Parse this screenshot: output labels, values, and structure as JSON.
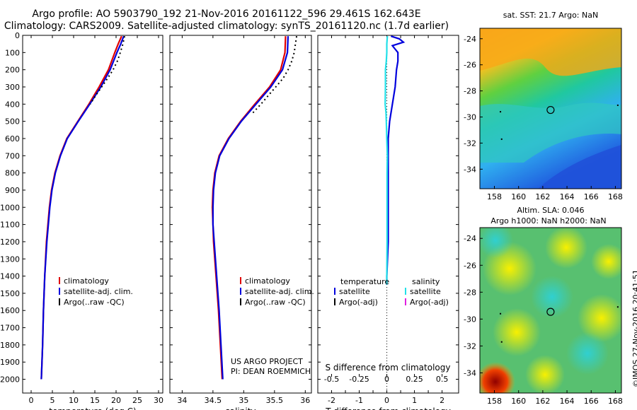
{
  "header": {
    "line1": "Argo profile: AO 5903790_192 21-Nov-2016 20161122_596 29.461S 162.643E",
    "line2": "Climatology: CARS2009. Satellite-adjusted climatology: synTS_20161120.nc (1.7d earlier)"
  },
  "credits": {
    "project": "US ARGO PROJECT",
    "pi": "PI: DEAN ROEMMICH",
    "imos": "©IMOS 27-Nov-2016 20:41:51"
  },
  "colors": {
    "climatology": "#e00000",
    "satellite": "#0000dd",
    "argo": "#000000",
    "sal_satellite": "#22e0e8",
    "sal_argo": "#e020e0"
  },
  "chart_data": [
    {
      "type": "line",
      "panel": "temperature",
      "xlabel": "temperature (deg C)",
      "xlim": [
        -2,
        31
      ],
      "ylim": [
        2080,
        0
      ],
      "x_ticks": [
        0,
        5,
        10,
        15,
        20,
        25,
        30
      ],
      "y_ticks": [
        0,
        100,
        200,
        300,
        400,
        500,
        600,
        700,
        800,
        900,
        1000,
        1100,
        1200,
        1300,
        1400,
        1500,
        1600,
        1700,
        1800,
        1900,
        2000
      ],
      "legend": [
        "climatology",
        "satellite-adj. clim.",
        "Argo(..raw -QC)"
      ],
      "series": [
        {
          "name": "climatology",
          "depth": [
            5,
            50,
            100,
            200,
            300,
            400,
            500,
            600,
            700,
            800,
            900,
            1000,
            1200,
            1400,
            1600,
            1800,
            2000
          ],
          "values": [
            21.3,
            20.5,
            19.7,
            18.2,
            16.0,
            13.6,
            11.0,
            8.4,
            6.8,
            5.6,
            4.8,
            4.3,
            3.6,
            3.2,
            2.9,
            2.7,
            2.4
          ]
        },
        {
          "name": "satellite-adj. clim.",
          "depth": [
            5,
            50,
            100,
            200,
            300,
            400,
            500,
            600,
            700,
            800,
            900,
            1000,
            1200,
            1400,
            1600,
            1800,
            2000
          ],
          "values": [
            21.8,
            21.1,
            20.2,
            18.6,
            16.4,
            13.8,
            11.1,
            8.5,
            6.9,
            5.7,
            4.9,
            4.4,
            3.7,
            3.2,
            2.9,
            2.7,
            2.4
          ]
        },
        {
          "name": "Argo(..raw -QC)",
          "depth": [
            5,
            50,
            100,
            150,
            200,
            250,
            300,
            350,
            400
          ],
          "values": [
            22.0,
            21.6,
            21.0,
            20.3,
            19.3,
            18.0,
            16.6,
            15.2,
            13.9
          ]
        }
      ]
    },
    {
      "type": "line",
      "panel": "salinity",
      "xlabel": "salinity",
      "xlim": [
        33.8,
        36.1
      ],
      "ylim": [
        2080,
        0
      ],
      "x_ticks": [
        34,
        34.5,
        35,
        35.5,
        36
      ],
      "legend": [
        "climatology",
        "satellite-adj. clim.",
        "Argo(..raw -QC)"
      ],
      "series": [
        {
          "name": "climatology",
          "depth": [
            5,
            100,
            200,
            300,
            400,
            500,
            600,
            700,
            800,
            900,
            1000,
            1100,
            1200,
            1400,
            1600,
            1800,
            2000
          ],
          "values": [
            35.68,
            35.67,
            35.6,
            35.42,
            35.18,
            34.95,
            34.75,
            34.6,
            34.53,
            34.5,
            34.49,
            34.5,
            34.51,
            34.55,
            34.59,
            34.62,
            34.65
          ]
        },
        {
          "name": "satellite-adj. clim.",
          "depth": [
            5,
            100,
            200,
            300,
            400,
            500,
            600,
            700,
            800,
            900,
            1000,
            1100,
            1200,
            1400,
            1600,
            1800,
            2000
          ],
          "values": [
            35.72,
            35.71,
            35.63,
            35.44,
            35.2,
            34.96,
            34.76,
            34.61,
            34.54,
            34.51,
            34.5,
            34.5,
            34.52,
            34.56,
            34.6,
            34.63,
            34.66
          ]
        },
        {
          "name": "Argo(..raw -QC)",
          "depth": [
            5,
            50,
            100,
            150,
            200,
            250,
            300,
            350,
            400,
            450
          ],
          "values": [
            35.86,
            35.84,
            35.82,
            35.78,
            35.72,
            35.64,
            35.52,
            35.4,
            35.28,
            35.15
          ]
        }
      ]
    },
    {
      "type": "line",
      "panel": "difference",
      "xlabel": "T difference from climatology",
      "x2label": "S difference from climatology",
      "xlim": [
        -2.5,
        2.6
      ],
      "ylim": [
        2080,
        0
      ],
      "x_ticks": [
        -2,
        -1.5,
        -1,
        -0.5,
        0,
        0.5,
        1,
        1.5,
        2
      ],
      "x_tick_labels": [
        "-2",
        "",
        "-1",
        "",
        "0",
        "",
        "1",
        "",
        "2"
      ],
      "x2_ticks": [
        -0.5,
        -0.25,
        0,
        0.25,
        0.5
      ],
      "x2_tick_labels": [
        "-0.5",
        "-0.25",
        "0",
        "0.25",
        "0.5"
      ],
      "legend_temperature": [
        "temperature",
        "satellite",
        "Argo(-adj)"
      ],
      "legend_salinity": [
        "salinity",
        "satellite",
        "Argo(-adj)"
      ],
      "series": [
        {
          "name": "temperature satellite",
          "depth": [
            5,
            20,
            40,
            60,
            80,
            100,
            150,
            200,
            300,
            400,
            500,
            600,
            800,
            1000,
            1200,
            1400,
            1450
          ],
          "values": [
            0.15,
            0.45,
            0.6,
            0.2,
            0.3,
            0.4,
            0.4,
            0.35,
            0.3,
            0.2,
            0.1,
            0.05,
            0.05,
            0.05,
            0.05,
            0.0,
            0.0
          ]
        },
        {
          "name": "salinity satellite",
          "depth": [
            5,
            50,
            100,
            150,
            200,
            300,
            400,
            450,
            500,
            600,
            700,
            800,
            1000,
            1200,
            1400,
            1450
          ],
          "values": [
            0.02,
            0.0,
            0.0,
            -0.02,
            -0.05,
            -0.05,
            -0.06,
            -0.03,
            -0.02,
            0.0,
            0.02,
            0.01,
            0.01,
            0.01,
            0.0,
            0.0
          ]
        }
      ]
    },
    {
      "type": "heatmap",
      "panel": "sst-map",
      "title": "sat. SST: 21.7 Argo: NaN",
      "x_ticks": [
        158,
        160,
        162,
        164,
        166,
        168
      ],
      "y_ticks": [
        -24,
        -26,
        -28,
        -30,
        -32,
        -34
      ],
      "xlim": [
        156.8,
        168.5
      ],
      "ylim": [
        -35.5,
        -23.2
      ],
      "argo_position": [
        162.643,
        -29.461
      ]
    },
    {
      "type": "heatmap",
      "panel": "sla-map",
      "title": "Altim. SLA: 0.046",
      "subtitle": "Argo h1000: NaN h2000: NaN",
      "x_ticks": [
        158,
        160,
        162,
        164,
        166,
        168
      ],
      "y_ticks": [
        -24,
        -26,
        -28,
        -30,
        -32,
        -34
      ],
      "xlim": [
        156.8,
        168.5
      ],
      "ylim": [
        -35.5,
        -23.2
      ],
      "argo_position": [
        162.643,
        -29.461
      ]
    }
  ]
}
